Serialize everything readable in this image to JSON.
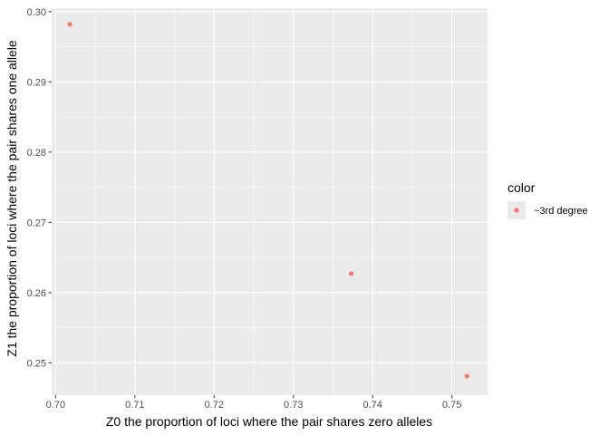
{
  "chart_data": {
    "type": "scatter",
    "xlabel": "Z0 the proportion of loci where the pair shares zero alleles",
    "ylabel": "Z1 the proportion of loci where the pair shares one allele",
    "xlim": [
      0.6995,
      0.7545
    ],
    "ylim": [
      0.2454,
      0.3005
    ],
    "x_ticks": [
      0.7,
      0.71,
      0.72,
      0.73,
      0.74,
      0.75
    ],
    "x_tick_labels": [
      "0.70",
      "0.71",
      "0.72",
      "0.73",
      "0.74",
      "0.75"
    ],
    "y_ticks": [
      0.25,
      0.26,
      0.27,
      0.28,
      0.29,
      0.3
    ],
    "y_tick_labels": [
      "0.25",
      "0.26",
      "0.27",
      "0.28",
      "0.29",
      "0.30"
    ],
    "grid": true,
    "legend": {
      "title": "color",
      "position": "right",
      "entries": [
        {
          "label": "~3rd degree",
          "color": "#F8766D"
        }
      ]
    },
    "series": [
      {
        "name": "~3rd degree",
        "color": "#F8766D",
        "points": [
          {
            "x": 0.7018,
            "y": 0.2982
          },
          {
            "x": 0.7373,
            "y": 0.2627
          },
          {
            "x": 0.7519,
            "y": 0.2481
          }
        ]
      }
    ],
    "colors": {
      "panel_background": "#EBEBEB",
      "grid_major": "#FFFFFF",
      "tick_text": "#4D4D4D",
      "tick_mark": "#333333"
    }
  }
}
